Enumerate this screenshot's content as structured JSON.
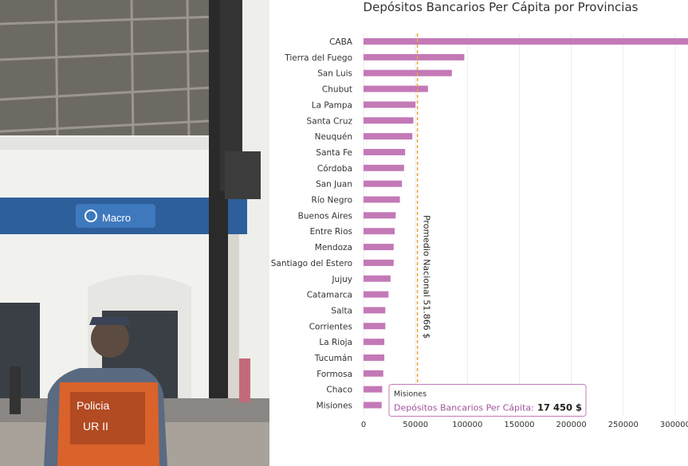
{
  "photo": {
    "sign_text": "Macro",
    "vest_text_line1": "Policia",
    "vest_text_line2": "UR II"
  },
  "chart_data": {
    "type": "bar",
    "orientation": "horizontal",
    "title": "Depósitos Bancarios Per Cápita por Provincias",
    "categories": [
      "CABA",
      "Tierra del Fuego",
      "San Luis",
      "Chubut",
      "La Pampa",
      "Santa Cruz",
      "Neuquén",
      "Santa Fe",
      "Córdoba",
      "San Juan",
      "Río Negro",
      "Buenos Aires",
      "Entre Rios",
      "Mendoza",
      "Santiago del Estero",
      "Jujuy",
      "Catamarca",
      "Salta",
      "Corrientes",
      "La Rioja",
      "Tucumán",
      "Formosa",
      "Chaco",
      "Misiones"
    ],
    "series": [
      {
        "name": "Depósitos Bancarios Per Cápita",
        "values": [
          335000,
          97000,
          85000,
          62000,
          50000,
          48000,
          47000,
          40000,
          39000,
          37000,
          35000,
          31000,
          30000,
          29000,
          29000,
          26000,
          24000,
          21000,
          21000,
          20000,
          20000,
          19000,
          18000,
          17450
        ]
      }
    ],
    "xlim": [
      0,
      320000
    ],
    "xticks": [
      "0",
      "50000",
      "100000",
      "150000",
      "200000",
      "250000",
      "300000"
    ],
    "xtick_values": [
      0,
      50000,
      100000,
      150000,
      200000,
      250000,
      300000
    ],
    "reference_line": {
      "value": 51866,
      "label": "Promedio Nacional 51.866 $",
      "color": "#e8a33a"
    },
    "tooltip": {
      "category": "Misiones",
      "series_label": "Depósitos Bancarios Per Cápita:",
      "value_text": "17 450 $"
    },
    "grid": true,
    "bar_color": "#c479b7"
  }
}
